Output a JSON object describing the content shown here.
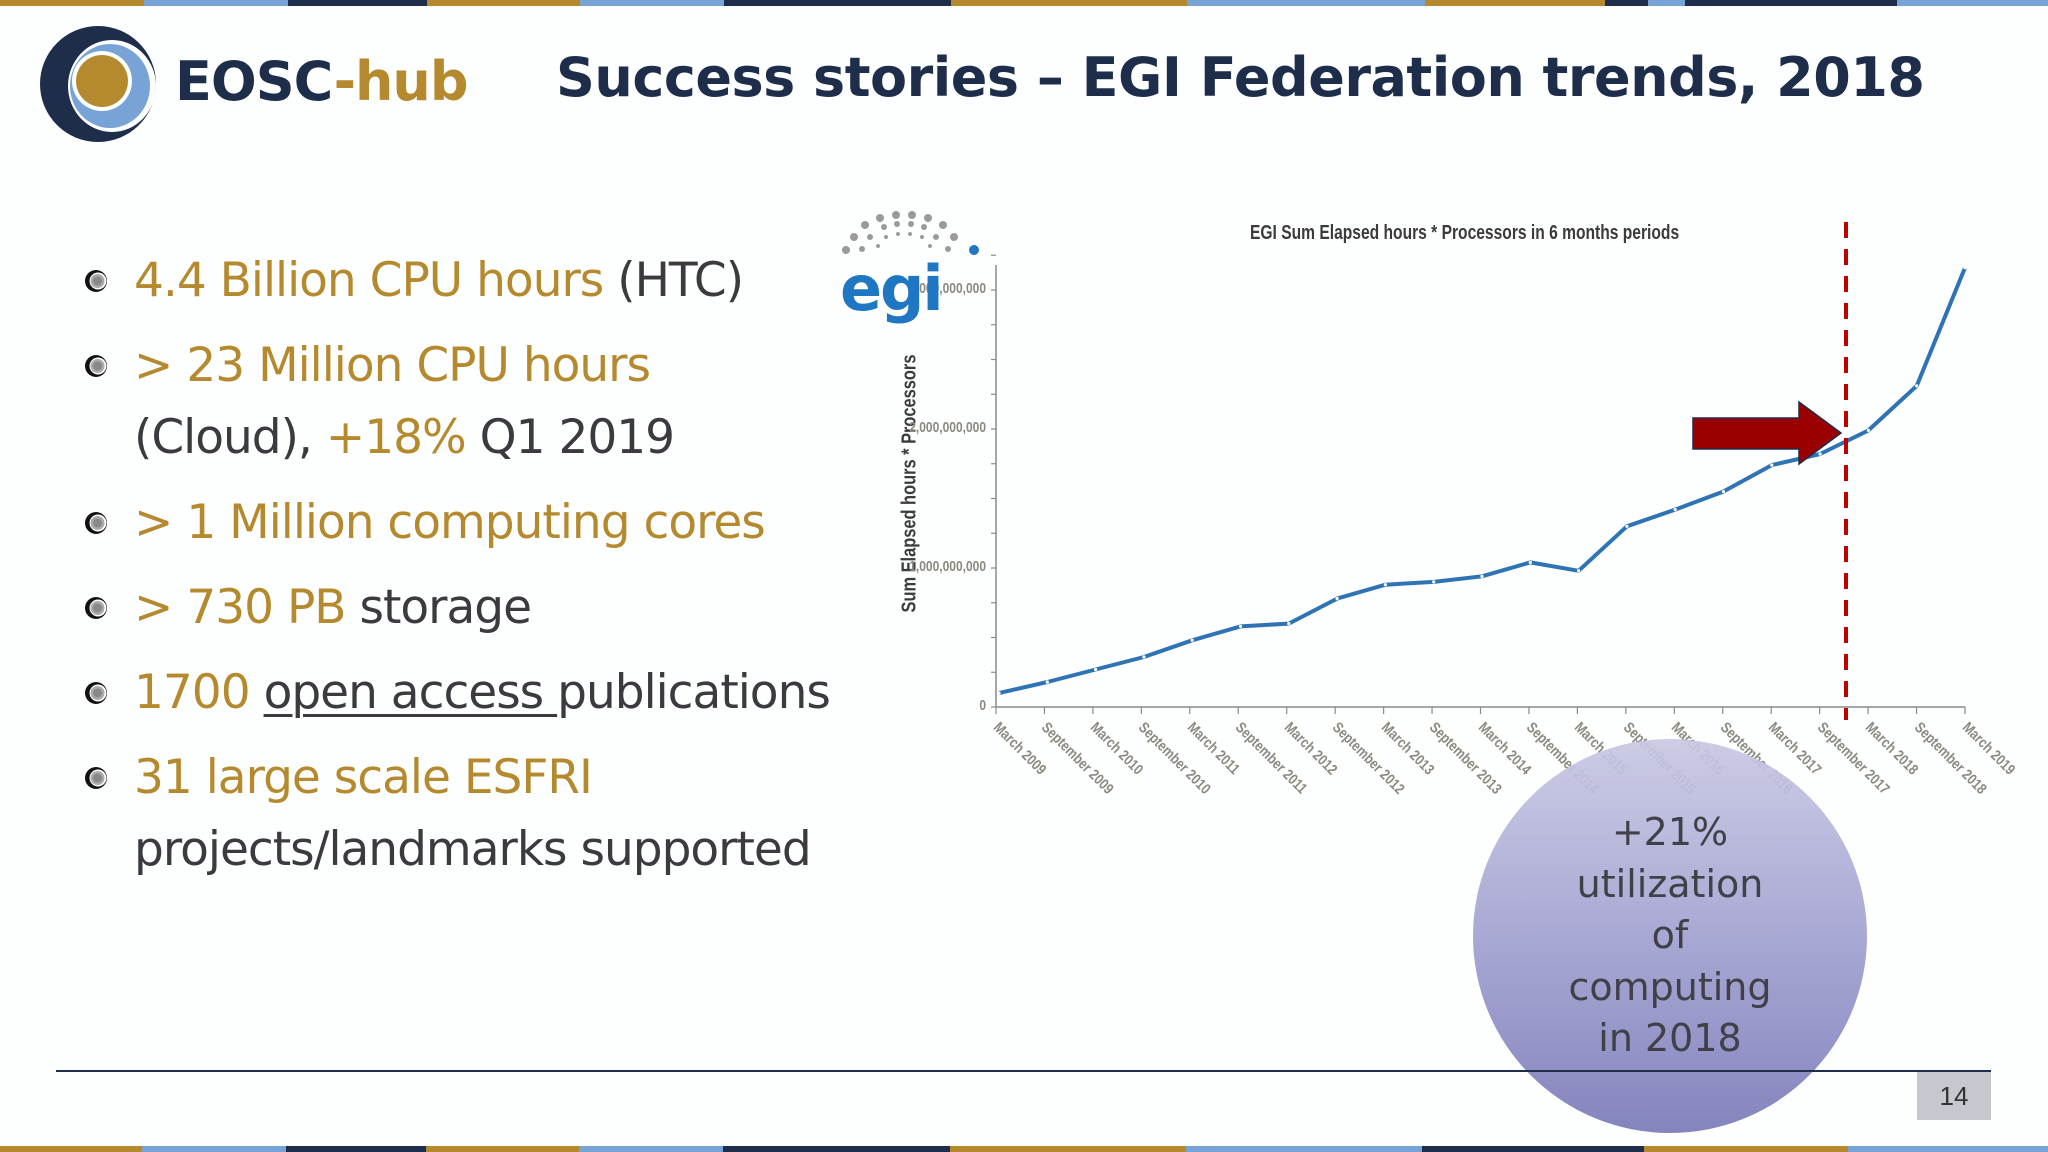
{
  "colors": {
    "navy": "#1e2d4a",
    "gold": "#b58a2e",
    "light_blue": "#77a3d6",
    "text_dark": "#3a3a3f",
    "line_blue": "#2e74b5",
    "marker_red": "#a00000",
    "bubble_purple": "#a0a0d0"
  },
  "header": {
    "logo": {
      "name": "EOSC",
      "dash": "-",
      "suffix": "hub"
    },
    "title": "Success stories – EGI Federation trends, 2018"
  },
  "bullets": [
    {
      "parts": [
        {
          "text": "4.4 Billion CPU hours",
          "style": "gold"
        },
        {
          "text": " (HTC)",
          "style": "dark"
        }
      ]
    },
    {
      "parts": [
        {
          "text": "> 23 Million CPU hours",
          "style": "gold"
        }
      ],
      "line2": [
        {
          "text": "(Cloud), ",
          "style": "dark"
        },
        {
          "text": "+18%",
          "style": "gold"
        },
        {
          "text": " Q1 2019",
          "style": "dark"
        }
      ]
    },
    {
      "parts": [
        {
          "text": "> 1 Million computing cores",
          "style": "gold"
        }
      ]
    },
    {
      "parts": [
        {
          "text": "> 730 PB",
          "style": "gold"
        },
        {
          "text": " storage",
          "style": "dark"
        }
      ]
    },
    {
      "parts": [
        {
          "text": "1700 ",
          "style": "gold"
        },
        {
          "text": "open access ",
          "style": "underline"
        },
        {
          "text": "publications",
          "style": "dark"
        }
      ]
    },
    {
      "parts": [
        {
          "text": "31 large scale ESFRI",
          "style": "gold"
        }
      ],
      "line2": [
        {
          "text": "projects/landmarks supported",
          "style": "dark"
        }
      ]
    }
  ],
  "chart_data": {
    "type": "line",
    "title": "EGI Sum Elapsed hours * Processors in 6 months periods",
    "xlabel": "",
    "ylabel": "Sum Elapsed hours * Processors",
    "categories": [
      "March 2009",
      "September 2009",
      "March 2010",
      "September 2010",
      "March 2011",
      "September 2011",
      "March 2012",
      "September 2012",
      "March 2013",
      "September 2013",
      "March 2014",
      "September 2014",
      "March 2015",
      "September 2015",
      "March 2016",
      "September 2016",
      "March 2017",
      "September 2017",
      "March 2018",
      "September 2018",
      "March 2019"
    ],
    "series": [
      {
        "name": "EGI Sum Elapsed hours * Processors",
        "color": "#2e74b5",
        "values": [
          100000000,
          180000000,
          270000000,
          360000000,
          480000000,
          580000000,
          600000000,
          780000000,
          880000000,
          900000000,
          940000000,
          1040000000,
          980000000,
          1300000000,
          1420000000,
          1550000000,
          1740000000,
          1820000000,
          1990000000,
          2310000000,
          3160000000
        ]
      }
    ],
    "yticks": [
      "0",
      "1,000,000,000",
      "2,000,000,000",
      "3,000,000,000"
    ],
    "ylim": [
      0,
      3200000000
    ],
    "grid": false,
    "legend": "none",
    "annotations": [
      {
        "type": "vertical-dashed-line",
        "color": "#c00000",
        "between": [
          "September 2017",
          "March 2018"
        ]
      },
      {
        "type": "arrow",
        "color": "#9b0000",
        "points_to": "September 2017"
      },
      {
        "type": "logo",
        "text": "egi"
      }
    ]
  },
  "callout": {
    "lines": [
      "+21%",
      "utilization",
      "of",
      "computing",
      "in 2018"
    ]
  },
  "footer": {
    "page_number": "14"
  }
}
